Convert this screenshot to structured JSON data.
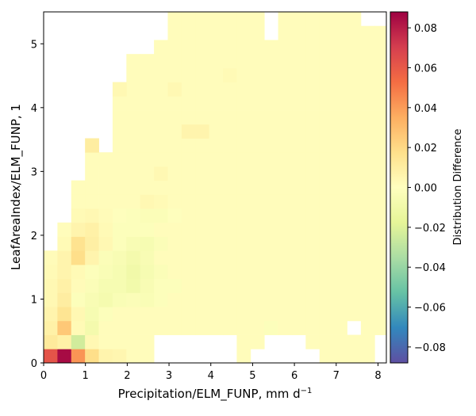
{
  "chart_data": {
    "type": "heatmap",
    "xlabel": "Precipitation/ELM_FUNP,  mm d",
    "xlabel_sup": "−1",
    "ylabel": "LeafAreaIndex/ELM_FUNP,  1",
    "colorbar_label": "Distribution Difference",
    "xlim": [
      0,
      8.2
    ],
    "ylim": [
      0,
      5.5
    ],
    "x_bin_width": 0.33,
    "y_bin_width": 0.22,
    "x_ticks": [
      0,
      1,
      2,
      3,
      4,
      5,
      6,
      7,
      8
    ],
    "y_ticks": [
      0,
      1,
      2,
      3,
      4,
      5
    ],
    "colorbar_range": [
      -0.088,
      0.088
    ],
    "colorbar_ticks": [
      -0.08,
      -0.06,
      -0.04,
      -0.02,
      0.0,
      0.02,
      0.04,
      0.06,
      0.08
    ],
    "colorbar_tick_labels": [
      "−0.08",
      "−0.06",
      "−0.04",
      "−0.02",
      "0.00",
      "0.02",
      "0.04",
      "0.06",
      "0.08"
    ],
    "colormap": "Spectral_r",
    "default_cell_value": 0.0015,
    "grid": false,
    "legend": "none",
    "row_extents": [
      {
        "row": 0,
        "from_col": 0,
        "to_col": 24
      },
      {
        "row": 1,
        "from_col": 0,
        "to_col": 24
      },
      {
        "row": 2,
        "from_col": 0,
        "to_col": 24
      },
      {
        "row": 3,
        "from_col": 0,
        "to_col": 24
      },
      {
        "row": 4,
        "from_col": 0,
        "to_col": 24
      },
      {
        "row": 5,
        "from_col": 0,
        "to_col": 24
      },
      {
        "row": 6,
        "from_col": 0,
        "to_col": 24
      },
      {
        "row": 7,
        "from_col": 0,
        "to_col": 24
      },
      {
        "row": 8,
        "from_col": 1,
        "to_col": 24
      },
      {
        "row": 9,
        "from_col": 1,
        "to_col": 24
      },
      {
        "row": 10,
        "from_col": 2,
        "to_col": 24
      },
      {
        "row": 11,
        "from_col": 2,
        "to_col": 24
      },
      {
        "row": 12,
        "from_col": 2,
        "to_col": 24
      },
      {
        "row": 13,
        "from_col": 3,
        "to_col": 24
      },
      {
        "row": 14,
        "from_col": 4,
        "to_col": 24
      },
      {
        "row": 15,
        "from_col": 4,
        "to_col": 24
      },
      {
        "row": 16,
        "from_col": 5,
        "to_col": 24
      },
      {
        "row": 17,
        "from_col": 5,
        "to_col": 24
      },
      {
        "row": 18,
        "from_col": 5,
        "to_col": 24
      },
      {
        "row": 19,
        "from_col": 6,
        "to_col": 24
      },
      {
        "row": 20,
        "from_col": 6,
        "to_col": 24
      },
      {
        "row": 21,
        "from_col": 6,
        "to_col": 24
      },
      {
        "row": 22,
        "from_col": 8,
        "to_col": 24
      },
      {
        "row": 23,
        "from_col": 9,
        "to_col": 24
      }
    ],
    "extra_cells": [
      {
        "col": 3,
        "row": 14
      },
      {
        "col": 3,
        "row": 15
      },
      {
        "col": 8,
        "row": 21
      },
      {
        "col": 9,
        "row": 22
      },
      {
        "col": 11,
        "row": 23
      },
      {
        "col": 12,
        "row": 23
      },
      {
        "col": 13,
        "row": 23
      },
      {
        "col": 14,
        "row": 23
      },
      {
        "col": 15,
        "row": 23
      },
      {
        "col": 16,
        "row": 23
      },
      {
        "col": 17,
        "row": 23
      },
      {
        "col": 18,
        "row": 23
      },
      {
        "col": 19,
        "row": 23
      },
      {
        "col": 20,
        "row": 23
      },
      {
        "col": 21,
        "row": 23
      },
      {
        "col": 22,
        "row": 23
      },
      {
        "col": 23,
        "row": 23
      },
      {
        "col": 9,
        "row": 24
      },
      {
        "col": 10,
        "row": 24
      },
      {
        "col": 11,
        "row": 24
      },
      {
        "col": 12,
        "row": 24
      },
      {
        "col": 13,
        "row": 24
      },
      {
        "col": 14,
        "row": 24
      },
      {
        "col": 15,
        "row": 24
      },
      {
        "col": 17,
        "row": 24
      },
      {
        "col": 18,
        "row": 24
      },
      {
        "col": 19,
        "row": 24
      },
      {
        "col": 20,
        "row": 24
      },
      {
        "col": 21,
        "row": 24
      },
      {
        "col": 22,
        "row": 24
      },
      {
        "col": 11,
        "row": 25
      },
      {
        "col": 12,
        "row": 25
      },
      {
        "col": 18,
        "row": 25
      },
      {
        "col": 19,
        "row": 25
      }
    ],
    "missing_cells": [
      {
        "col": 8,
        "row": 0
      },
      {
        "col": 9,
        "row": 0
      },
      {
        "col": 10,
        "row": 0
      },
      {
        "col": 11,
        "row": 0
      },
      {
        "col": 12,
        "row": 0
      },
      {
        "col": 13,
        "row": 0
      },
      {
        "col": 15,
        "row": 0
      },
      {
        "col": 16,
        "row": 0
      },
      {
        "col": 17,
        "row": 0
      },
      {
        "col": 18,
        "row": 0
      },
      {
        "col": 19,
        "row": 0
      },
      {
        "col": 8,
        "row": 1
      },
      {
        "col": 9,
        "row": 1
      },
      {
        "col": 10,
        "row": 1
      },
      {
        "col": 11,
        "row": 1
      },
      {
        "col": 12,
        "row": 1
      },
      {
        "col": 13,
        "row": 1
      },
      {
        "col": 16,
        "row": 1
      },
      {
        "col": 17,
        "row": 1
      },
      {
        "col": 18,
        "row": 1
      },
      {
        "col": 22,
        "row": 2
      },
      {
        "col": 24,
        "row": 1
      },
      {
        "col": 24,
        "row": 0
      },
      {
        "col": 16,
        "row": 23
      },
      {
        "col": 23,
        "row": 25
      },
      {
        "col": 6,
        "row": 23
      },
      {
        "col": 5,
        "row": 20
      },
      {
        "col": 4,
        "row": 15
      }
    ],
    "cell_values": [
      {
        "col": 0,
        "row": 0,
        "value": 0.062
      },
      {
        "col": 1,
        "row": 0,
        "value": 0.085
      },
      {
        "col": 2,
        "row": 0,
        "value": 0.042
      },
      {
        "col": 3,
        "row": 0,
        "value": 0.018
      },
      {
        "col": 4,
        "row": 0,
        "value": 0.006
      },
      {
        "col": 5,
        "row": 0,
        "value": 0.005
      },
      {
        "col": 0,
        "row": 1,
        "value": 0.012
      },
      {
        "col": 1,
        "row": 1,
        "value": 0.008
      },
      {
        "col": 2,
        "row": 1,
        "value": -0.024
      },
      {
        "col": 3,
        "row": 1,
        "value": 0.004
      },
      {
        "col": 0,
        "row": 2,
        "value": 0.008
      },
      {
        "col": 1,
        "row": 2,
        "value": 0.026
      },
      {
        "col": 2,
        "row": 2,
        "value": 0.003
      },
      {
        "col": 3,
        "row": 2,
        "value": -0.008
      },
      {
        "col": 0,
        "row": 3,
        "value": 0.006
      },
      {
        "col": 1,
        "row": 3,
        "value": 0.015
      },
      {
        "col": 2,
        "row": 3,
        "value": 0.004
      },
      {
        "col": 3,
        "row": 3,
        "value": -0.006
      },
      {
        "col": 4,
        "row": 3,
        "value": -0.002
      },
      {
        "col": 0,
        "row": 4,
        "value": 0.004
      },
      {
        "col": 1,
        "row": 4,
        "value": 0.01
      },
      {
        "col": 2,
        "row": 4,
        "value": -0.002
      },
      {
        "col": 3,
        "row": 4,
        "value": -0.005
      },
      {
        "col": 4,
        "row": 4,
        "value": -0.007
      },
      {
        "col": 5,
        "row": 4,
        "value": -0.004
      },
      {
        "col": 6,
        "row": 4,
        "value": -0.003
      },
      {
        "col": 0,
        "row": 5,
        "value": 0.004
      },
      {
        "col": 1,
        "row": 5,
        "value": 0.008
      },
      {
        "col": 2,
        "row": 5,
        "value": 0.002
      },
      {
        "col": 3,
        "row": 5,
        "value": -0.003
      },
      {
        "col": 4,
        "row": 5,
        "value": -0.006
      },
      {
        "col": 5,
        "row": 5,
        "value": -0.006
      },
      {
        "col": 6,
        "row": 5,
        "value": -0.009
      },
      {
        "col": 7,
        "row": 5,
        "value": -0.005
      },
      {
        "col": 8,
        "row": 5,
        "value": -0.002
      },
      {
        "col": 0,
        "row": 6,
        "value": 0.003
      },
      {
        "col": 1,
        "row": 6,
        "value": 0.006
      },
      {
        "col": 2,
        "row": 6,
        "value": 0.003
      },
      {
        "col": 3,
        "row": 6,
        "value": -0.002
      },
      {
        "col": 4,
        "row": 6,
        "value": -0.004
      },
      {
        "col": 5,
        "row": 6,
        "value": -0.006
      },
      {
        "col": 6,
        "row": 6,
        "value": -0.01
      },
      {
        "col": 7,
        "row": 6,
        "value": -0.006
      },
      {
        "col": 8,
        "row": 6,
        "value": -0.003
      },
      {
        "col": 1,
        "row": 7,
        "value": 0.006
      },
      {
        "col": 2,
        "row": 7,
        "value": 0.018
      },
      {
        "col": 3,
        "row": 7,
        "value": 0.006
      },
      {
        "col": 4,
        "row": 7,
        "value": -0.003
      },
      {
        "col": 5,
        "row": 7,
        "value": -0.005
      },
      {
        "col": 6,
        "row": 7,
        "value": -0.008
      },
      {
        "col": 7,
        "row": 7,
        "value": -0.005
      },
      {
        "col": 1,
        "row": 8,
        "value": 0.003
      },
      {
        "col": 2,
        "row": 8,
        "value": 0.016
      },
      {
        "col": 3,
        "row": 8,
        "value": 0.009
      },
      {
        "col": 4,
        "row": 8,
        "value": 0.004
      },
      {
        "col": 5,
        "row": 8,
        "value": -0.002
      },
      {
        "col": 6,
        "row": 8,
        "value": -0.005
      },
      {
        "col": 7,
        "row": 8,
        "value": -0.006
      },
      {
        "col": 8,
        "row": 8,
        "value": -0.003
      },
      {
        "col": 2,
        "row": 9,
        "value": 0.006
      },
      {
        "col": 3,
        "row": 9,
        "value": 0.008
      },
      {
        "col": 4,
        "row": 9,
        "value": 0.003
      },
      {
        "col": 5,
        "row": 9,
        "value": -0.002
      },
      {
        "col": 6,
        "row": 9,
        "value": -0.002
      },
      {
        "col": 7,
        "row": 9,
        "value": -0.002
      },
      {
        "col": 2,
        "row": 10,
        "value": 0.003
      },
      {
        "col": 3,
        "row": 10,
        "value": 0.004
      },
      {
        "col": 4,
        "row": 10,
        "value": 0.002
      },
      {
        "col": 5,
        "row": 10,
        "value": -0.001
      },
      {
        "col": 6,
        "row": 10,
        "value": -0.002
      },
      {
        "col": 7,
        "row": 10,
        "value": -0.003
      },
      {
        "col": 8,
        "row": 10,
        "value": -0.003
      },
      {
        "col": 9,
        "row": 10,
        "value": -0.001
      },
      {
        "col": 7,
        "row": 11,
        "value": 0.004
      },
      {
        "col": 8,
        "row": 11,
        "value": 0.003
      },
      {
        "col": 8,
        "row": 13,
        "value": 0.004
      },
      {
        "col": 3,
        "row": 15,
        "value": 0.01
      },
      {
        "col": 10,
        "row": 16,
        "value": 0.006
      },
      {
        "col": 11,
        "row": 16,
        "value": 0.006
      },
      {
        "col": 5,
        "row": 19,
        "value": 0.004
      },
      {
        "col": 9,
        "row": 19,
        "value": 0.004
      },
      {
        "col": 13,
        "row": 20,
        "value": 0.003
      },
      {
        "col": 0,
        "row": 7,
        "value": 0.002
      },
      {
        "col": 16,
        "row": 2,
        "value": -0.002
      },
      {
        "col": 7,
        "row": 4,
        "value": -0.004
      },
      {
        "col": 8,
        "row": 4,
        "value": -0.002
      },
      {
        "col": 9,
        "row": 5,
        "value": -0.002
      }
    ]
  }
}
